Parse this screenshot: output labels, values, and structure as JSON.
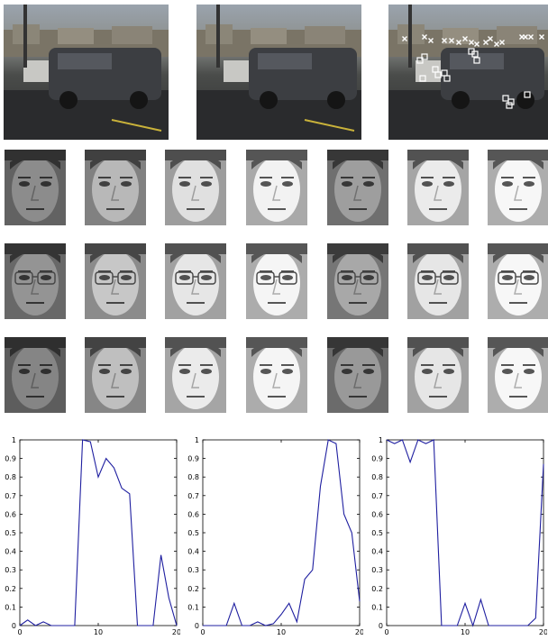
{
  "chart_data": [
    {
      "type": "line",
      "x": [
        0,
        1,
        2,
        3,
        4,
        5,
        6,
        7,
        8,
        9,
        10,
        11,
        12,
        13,
        14,
        15,
        16,
        17,
        18,
        19,
        20
      ],
      "series": [
        {
          "values": [
            0,
            0.03,
            0,
            0.02,
            0,
            0,
            0,
            0,
            1.0,
            0.99,
            0.8,
            0.9,
            0.85,
            0.74,
            0.71,
            0,
            0,
            0,
            0.38,
            0.15,
            0
          ]
        }
      ],
      "xlim": [
        0,
        20
      ],
      "ylim": [
        0,
        1
      ],
      "xticks": [
        "0",
        "10",
        "20"
      ],
      "yticks": [
        "0",
        "0.1",
        "0.2",
        "0.3",
        "0.4",
        "0.5",
        "0.6",
        "0.7",
        "0.8",
        "0.9",
        "1"
      ],
      "color": "#1f1fa0"
    },
    {
      "type": "line",
      "x": [
        0,
        1,
        2,
        3,
        4,
        5,
        6,
        7,
        8,
        9,
        10,
        11,
        12,
        13,
        14,
        15,
        16,
        17,
        18,
        19,
        20
      ],
      "series": [
        {
          "values": [
            0,
            0,
            0,
            0,
            0.12,
            0,
            0,
            0.02,
            0,
            0.01,
            0.06,
            0.12,
            0.02,
            0.25,
            0.3,
            0.75,
            1.0,
            0.98,
            0.6,
            0.5,
            0.13
          ]
        }
      ],
      "xlim": [
        0,
        20
      ],
      "ylim": [
        0,
        1
      ],
      "xticks": [
        "0",
        "10",
        "20"
      ],
      "yticks": [
        "0",
        "0.1",
        "0.2",
        "0.3",
        "0.4",
        "0.5",
        "0.6",
        "0.7",
        "0.8",
        "0.9",
        "1"
      ],
      "color": "#1f1fa0"
    },
    {
      "type": "line",
      "x": [
        0,
        1,
        2,
        3,
        4,
        5,
        6,
        7,
        8,
        9,
        10,
        11,
        12,
        13,
        14,
        15,
        16,
        17,
        18,
        19,
        20
      ],
      "series": [
        {
          "values": [
            1.0,
            0.98,
            1.0,
            0.88,
            1.0,
            0.98,
            1.0,
            0,
            0,
            0,
            0.12,
            0,
            0.14,
            0,
            0,
            0,
            0,
            0,
            0,
            0.04,
            0.87
          ]
        }
      ],
      "xlim": [
        0,
        20
      ],
      "ylim": [
        0,
        1
      ],
      "xticks": [
        "0",
        "10",
        "20"
      ],
      "yticks": [
        "0",
        "0.1",
        "0.2",
        "0.3",
        "0.4",
        "0.5",
        "0.6",
        "0.7",
        "0.8",
        "0.9",
        "1"
      ],
      "color": "#1f1fa0"
    }
  ],
  "faces": {
    "brightness": [
      [
        0.55,
        0.72,
        0.88,
        0.95,
        0.62,
        0.92,
        0.97
      ],
      [
        0.58,
        0.78,
        0.9,
        0.96,
        0.66,
        0.9,
        0.97
      ],
      [
        0.52,
        0.75,
        0.92,
        0.96,
        0.6,
        0.9,
        0.97
      ]
    ],
    "glasses_row": 1
  },
  "markers": {
    "x_count": 17,
    "square_count": 14
  }
}
